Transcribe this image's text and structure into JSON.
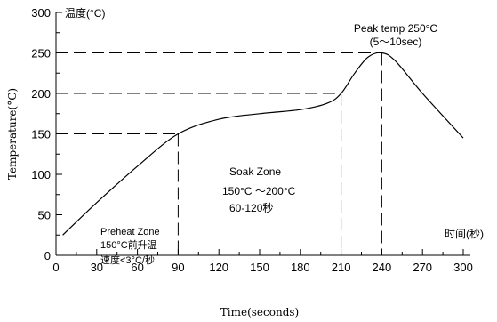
{
  "chart_data": {
    "type": "line",
    "xlabel": "Time(seconds)",
    "ylabel": "Temperature(°C)",
    "y_top_label": "温度(°C)",
    "x_end_label": "时间(秒)",
    "xlim": [
      0,
      300
    ],
    "ylim": [
      0,
      300
    ],
    "x_ticks": [
      0,
      30,
      60,
      90,
      120,
      150,
      180,
      210,
      240,
      270,
      300
    ],
    "y_ticks": [
      0,
      50,
      100,
      150,
      200,
      250,
      300
    ],
    "grid": false,
    "series": [
      {
        "x": [
          5,
          30,
          60,
          90,
          120,
          150,
          180,
          200,
          210,
          220,
          230,
          240,
          250,
          270,
          300
        ],
        "y": [
          25,
          65,
          110,
          150,
          168,
          175,
          180,
          188,
          200,
          225,
          245,
          250,
          240,
          200,
          145
        ]
      }
    ],
    "reference_lines": [
      {
        "from": [
          0,
          150
        ],
        "to": [
          90,
          150
        ]
      },
      {
        "from": [
          90,
          150
        ],
        "to": [
          90,
          0
        ]
      },
      {
        "from": [
          0,
          200
        ],
        "to": [
          210,
          200
        ]
      },
      {
        "from": [
          210,
          200
        ],
        "to": [
          210,
          0
        ]
      },
      {
        "from": [
          0,
          250
        ],
        "to": [
          240,
          250
        ]
      },
      {
        "from": [
          240,
          250
        ],
        "to": [
          240,
          0
        ]
      }
    ],
    "annotations": {
      "peak": {
        "line1": "Peak temp 250°C",
        "line2": "(5～10sec)"
      },
      "soak": {
        "line1": "Soak Zone",
        "line2": "150°C ～200°C",
        "line3": "60-120秒"
      },
      "preheat": {
        "line1": "Preheat Zone",
        "line2": "150°C前升温",
        "line3": "速度<3°C/秒"
      }
    }
  }
}
